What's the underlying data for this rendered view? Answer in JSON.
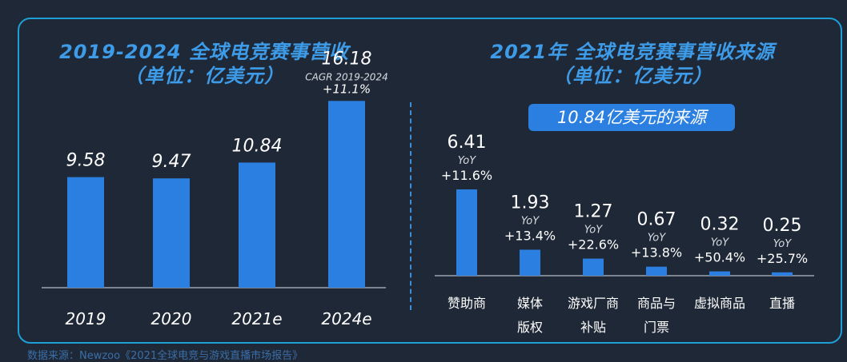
{
  "left_title": {
    "line1": "2019-2024 全球电竞赛事营收",
    "line2": "（单位：亿美元）"
  },
  "right_title": {
    "line1": "2021年 全球电竞赛事营收来源",
    "line2": "（单位：亿美元）"
  },
  "right_badge": "10.84亿美元的来源",
  "source_note": "数据来源：Newzoo《2021全球电竞与游戏直播市场报告》",
  "colors": {
    "bar": "#2b7fe0",
    "title": "#3d9be8",
    "background": "#1f2836",
    "frame": "#1e9fd6",
    "axis": "#9aa3ad"
  },
  "chart_data": [
    {
      "type": "bar",
      "title": "2019-2024 全球电竞赛事营收（单位：亿美元）",
      "categories": [
        "2019",
        "2020",
        "2021e",
        "2024e"
      ],
      "values": [
        9.58,
        9.47,
        10.84,
        16.18
      ],
      "value_labels": [
        "9.58",
        "9.47",
        "10.84",
        "16.18"
      ],
      "annotation": {
        "category": "2024e",
        "line1": "CAGR 2019-2024",
        "line2": "+11.1%"
      },
      "ylim": [
        0,
        18
      ]
    },
    {
      "type": "bar",
      "title": "2021年 全球电竞赛事营收来源（单位：亿美元）",
      "categories": [
        [
          "赞助商"
        ],
        [
          "媒体",
          "版权"
        ],
        [
          "游戏厂商",
          "补贴"
        ],
        [
          "商品与",
          "门票"
        ],
        [
          "虚拟商品"
        ],
        [
          "直播"
        ]
      ],
      "values": [
        6.41,
        1.93,
        1.27,
        0.67,
        0.32,
        0.25
      ],
      "value_labels": [
        "6.41",
        "1.93",
        "1.27",
        "0.67",
        "0.32",
        "0.25"
      ],
      "yoy_label": "YoY",
      "yoy": [
        "+11.6%",
        "+13.4%",
        "+22.6%",
        "+13.8%",
        "+50.4%",
        "+25.7%"
      ],
      "ylim": [
        0,
        7
      ]
    }
  ]
}
